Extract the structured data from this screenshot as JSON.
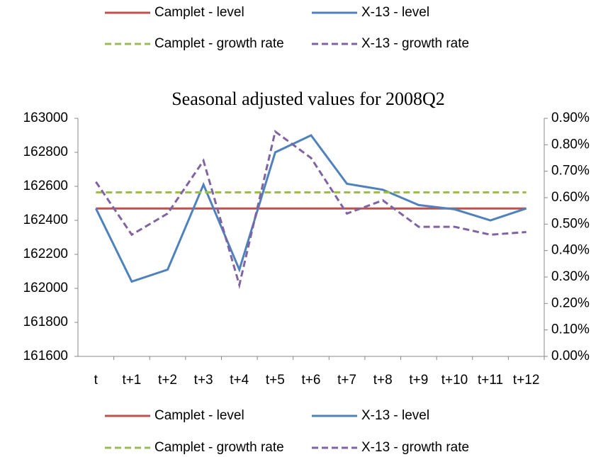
{
  "chart_data": {
    "type": "line",
    "title": "Seasonal adjusted values for 2008Q2",
    "categories": [
      "t",
      "t+1",
      "t+2",
      "t+3",
      "t+4",
      "t+5",
      "t+6",
      "t+7",
      "t+8",
      "t+9",
      "t+10",
      "t+11",
      "t+12"
    ],
    "series": [
      {
        "name": "Camplet - level",
        "color": "#c0504d",
        "line_style": "solid",
        "values": [
          162470,
          162470,
          162470,
          162470,
          162470,
          162470,
          162470,
          162470,
          162470,
          162470,
          162470,
          162470,
          162470
        ]
      },
      {
        "name": "X-13 - level",
        "color": "#4f81bd",
        "line_style": "solid",
        "values": [
          162470,
          162040,
          162110,
          162610,
          162110,
          162800,
          162900,
          162615,
          162580,
          162490,
          162465,
          162400,
          162470
        ]
      },
      {
        "name": "Camplet - growth rate",
        "color": "#9bbb59",
        "line_style": "dashed",
        "axis": "y2",
        "values": [
          0.62,
          0.62,
          0.62,
          0.62,
          0.62,
          0.62,
          0.62,
          0.62,
          0.62,
          0.62,
          0.62,
          0.62,
          0.62
        ]
      },
      {
        "name": "X-13 - growth rate",
        "color": "#8064a2",
        "line_style": "dashed",
        "axis": "y2",
        "values": [
          0.66,
          0.46,
          0.54,
          0.74,
          0.27,
          0.85,
          0.75,
          0.54,
          0.59,
          0.49,
          0.49,
          0.46,
          0.47
        ]
      }
    ],
    "ylim": [
      161600,
      163000
    ],
    "yticks": [
      161600,
      161800,
      162000,
      162200,
      162400,
      162600,
      162800,
      163000
    ],
    "y2lim": [
      0,
      0.9
    ],
    "y2ticks": [
      {
        "value": 0,
        "label": "0.00%"
      },
      {
        "value": 0.1,
        "label": "0.10%"
      },
      {
        "value": 0.2,
        "label": "0.20%"
      },
      {
        "value": 0.3,
        "label": "0.30%"
      },
      {
        "value": 0.4,
        "label": "0.40%"
      },
      {
        "value": 0.5,
        "label": "0.50%"
      },
      {
        "value": 0.6,
        "label": "0.60%"
      },
      {
        "value": 0.7,
        "label": "0.70%"
      },
      {
        "value": 0.8,
        "label": "0.80%"
      },
      {
        "value": 0.9,
        "label": "0.90%"
      }
    ],
    "grid": false,
    "legend": [
      "top",
      "bottom"
    ]
  }
}
